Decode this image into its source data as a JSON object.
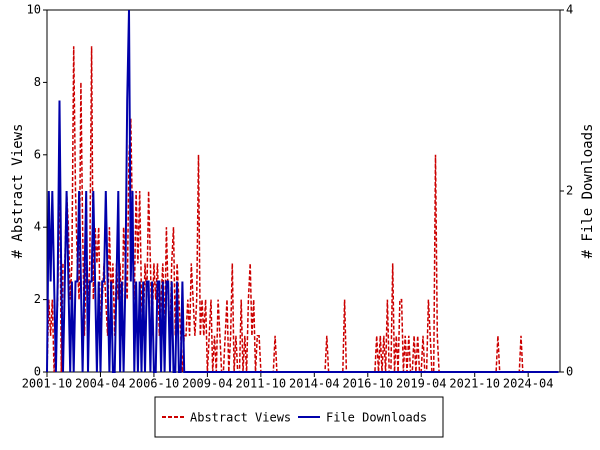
{
  "chart_data": {
    "type": "line",
    "x": [
      "2001-10",
      "2001-11",
      "2001-12",
      "2002-01",
      "2002-02",
      "2002-03",
      "2002-04",
      "2002-05",
      "2002-06",
      "2002-07",
      "2002-08",
      "2002-09",
      "2002-10",
      "2002-11",
      "2002-12",
      "2003-01",
      "2003-02",
      "2003-03",
      "2003-04",
      "2003-05",
      "2003-06",
      "2003-07",
      "2003-08",
      "2003-09",
      "2003-10",
      "2003-11",
      "2003-12",
      "2004-01",
      "2004-02",
      "2004-03",
      "2004-04",
      "2004-05",
      "2004-06",
      "2004-07",
      "2004-08",
      "2004-09",
      "2004-10",
      "2004-11",
      "2004-12",
      "2005-01",
      "2005-02",
      "2005-03",
      "2005-04",
      "2005-05",
      "2005-06",
      "2005-07",
      "2005-08",
      "2005-09",
      "2005-10",
      "2005-11",
      "2005-12",
      "2006-01",
      "2006-02",
      "2006-03",
      "2006-04",
      "2006-05",
      "2006-06",
      "2006-07",
      "2006-08",
      "2006-09",
      "2006-10",
      "2006-11",
      "2006-12",
      "2007-01",
      "2007-02",
      "2007-03",
      "2007-04",
      "2007-05",
      "2007-06",
      "2007-07",
      "2007-08",
      "2007-09",
      "2007-10",
      "2007-11",
      "2007-12",
      "2008-01",
      "2008-02",
      "2008-03",
      "2008-04",
      "2008-05",
      "2008-06",
      "2008-07",
      "2008-08",
      "2008-09",
      "2008-10",
      "2008-11",
      "2008-12",
      "2009-01",
      "2009-02",
      "2009-03",
      "2009-04",
      "2009-05",
      "2009-06",
      "2009-07",
      "2009-08",
      "2009-09",
      "2009-10",
      "2009-11",
      "2009-12",
      "2010-01",
      "2010-02",
      "2010-03",
      "2010-04",
      "2010-05",
      "2010-06",
      "2010-07",
      "2010-08",
      "2010-09",
      "2010-10",
      "2010-11",
      "2010-12",
      "2011-01",
      "2011-02",
      "2011-03",
      "2011-04",
      "2011-05",
      "2011-06",
      "2011-07",
      "2011-08",
      "2011-09",
      "2011-10",
      "2011-11",
      "2011-12",
      "2012-01",
      "2012-02",
      "2012-03",
      "2012-04",
      "2012-05",
      "2012-06",
      "2012-07",
      "2012-08",
      "2012-09",
      "2012-10",
      "2012-11",
      "2012-12",
      "2013-01",
      "2013-02",
      "2013-03",
      "2013-04",
      "2013-05",
      "2013-06",
      "2013-07",
      "2013-08",
      "2013-09",
      "2013-10",
      "2013-11",
      "2013-12",
      "2014-01",
      "2014-02",
      "2014-03",
      "2014-04",
      "2014-05",
      "2014-06",
      "2014-07",
      "2014-08",
      "2014-09",
      "2014-10",
      "2014-11",
      "2014-12",
      "2015-01",
      "2015-02",
      "2015-03",
      "2015-04",
      "2015-05",
      "2015-06",
      "2015-07",
      "2015-08",
      "2015-09",
      "2015-10",
      "2015-11",
      "2015-12",
      "2016-01",
      "2016-02",
      "2016-03",
      "2016-04",
      "2016-05",
      "2016-06",
      "2016-07",
      "2016-08",
      "2016-09",
      "2016-10",
      "2016-11",
      "2016-12",
      "2017-01",
      "2017-02",
      "2017-03",
      "2017-04",
      "2017-05",
      "2017-06",
      "2017-07",
      "2017-08",
      "2017-09",
      "2017-10",
      "2017-11",
      "2017-12",
      "2018-01",
      "2018-02",
      "2018-03",
      "2018-04",
      "2018-05",
      "2018-06",
      "2018-07",
      "2018-08",
      "2018-09",
      "2018-10",
      "2018-11",
      "2018-12",
      "2019-01",
      "2019-02",
      "2019-03",
      "2019-04",
      "2019-05",
      "2019-06",
      "2019-07",
      "2019-08",
      "2019-09",
      "2019-10",
      "2019-11",
      "2019-12",
      "2020-01",
      "2020-02",
      "2020-03",
      "2020-04",
      "2020-05",
      "2020-06",
      "2020-07",
      "2020-08",
      "2020-09",
      "2020-10",
      "2020-11",
      "2020-12",
      "2021-01",
      "2021-02",
      "2021-03",
      "2021-04",
      "2021-05",
      "2021-06",
      "2021-07",
      "2021-08",
      "2021-09",
      "2021-10",
      "2021-11",
      "2021-12",
      "2022-01",
      "2022-02",
      "2022-03",
      "2022-04",
      "2022-05",
      "2022-06",
      "2022-07",
      "2022-08",
      "2022-09",
      "2022-10",
      "2022-11",
      "2022-12",
      "2023-01",
      "2023-02",
      "2023-03",
      "2023-04",
      "2023-05",
      "2023-06",
      "2023-07",
      "2023-08",
      "2023-09",
      "2023-10",
      "2023-11",
      "2023-12",
      "2024-01",
      "2024-02",
      "2024-03",
      "2024-04",
      "2024-05",
      "2024-06",
      "2024-07",
      "2024-08",
      "2024-09",
      "2024-10",
      "2024-11",
      "2024-12",
      "2025-01",
      "2025-02",
      "2025-03",
      "2025-04",
      "2025-05",
      "2025-06",
      "2025-07",
      "2025-08",
      "2025-09"
    ],
    "series": [
      {
        "name": "Abstract Views",
        "color": "#cc0000",
        "axis": "y",
        "values": [
          0,
          2,
          1,
          2,
          0,
          1,
          2,
          6,
          0,
          3,
          3,
          5,
          4,
          2,
          3,
          9,
          5,
          3,
          2,
          8,
          4,
          1,
          3,
          2,
          3,
          9,
          2,
          4,
          3,
          4,
          1,
          2,
          3,
          2,
          1,
          4,
          2,
          3,
          1,
          3,
          2,
          3,
          1,
          4,
          3,
          2,
          6,
          7,
          4,
          2,
          5,
          3,
          5,
          2,
          1,
          3,
          2,
          5,
          3,
          1,
          3,
          2,
          3,
          1,
          2,
          3,
          1,
          4,
          2,
          1,
          3,
          4,
          1,
          3,
          2,
          1,
          0,
          1,
          1,
          2,
          1,
          3,
          2,
          1,
          2,
          6,
          1,
          2,
          1,
          2,
          0,
          1,
          2,
          0,
          1,
          0,
          2,
          1,
          0,
          0,
          1,
          2,
          0,
          1,
          3,
          0,
          1,
          0,
          0,
          2,
          0,
          1,
          0,
          2,
          3,
          1,
          2,
          0,
          1,
          1,
          0,
          0,
          0,
          0,
          0,
          0,
          0,
          0,
          1,
          0,
          0,
          0,
          0,
          0,
          0,
          0,
          0,
          0,
          0,
          0,
          0,
          0,
          0,
          0,
          0,
          0,
          0,
          0,
          0,
          0,
          0,
          0,
          0,
          0,
          0,
          0,
          0,
          1,
          0,
          0,
          0,
          0,
          0,
          0,
          0,
          0,
          0,
          2,
          0,
          0,
          0,
          0,
          0,
          0,
          0,
          0,
          0,
          0,
          0,
          0,
          0,
          0,
          0,
          0,
          0,
          1,
          0,
          1,
          0,
          1,
          0,
          2,
          0,
          0,
          3,
          0,
          1,
          0,
          2,
          2,
          0,
          1,
          0,
          1,
          0,
          0,
          1,
          0,
          1,
          0,
          0,
          1,
          0,
          0,
          2,
          1,
          0,
          0,
          6,
          1,
          0,
          0,
          0,
          0,
          0,
          0,
          0,
          0,
          0,
          0,
          0,
          0,
          0,
          0,
          0,
          0,
          0,
          0,
          0,
          0,
          0,
          0,
          0,
          0,
          0,
          0,
          0,
          0,
          0,
          0,
          0,
          0,
          0,
          1,
          0,
          0,
          0,
          0,
          0,
          0,
          0,
          0,
          0,
          0,
          0,
          0,
          1,
          0,
          0,
          0,
          0,
          0,
          0,
          0,
          0,
          0,
          0,
          0,
          0,
          0,
          0,
          0,
          0,
          0,
          0,
          0,
          0,
          0
        ]
      },
      {
        "name": "File Downloads",
        "color": "#0000aa",
        "axis": "y2",
        "values": [
          0,
          2,
          1,
          2,
          1,
          0,
          1,
          3,
          1,
          0,
          1,
          2,
          1,
          0,
          1,
          0,
          1,
          1,
          2,
          1,
          0,
          1,
          2,
          0,
          1,
          1,
          2,
          1,
          0,
          1,
          0,
          1,
          1,
          2,
          1,
          0,
          1,
          0,
          0,
          1,
          2,
          0,
          1,
          0,
          1,
          3,
          4,
          1,
          2,
          0,
          1,
          0,
          1,
          0,
          1,
          0,
          1,
          1,
          0,
          1,
          0,
          0,
          1,
          1,
          0,
          1,
          0,
          1,
          1,
          0,
          1,
          0,
          0,
          1,
          0,
          0,
          1,
          0,
          0,
          0,
          0,
          0,
          0,
          0,
          0,
          0,
          0,
          0,
          0,
          0,
          0,
          0,
          0,
          0,
          0,
          0,
          0,
          0,
          0,
          0,
          0,
          0,
          0,
          0,
          0,
          0,
          0,
          0,
          0,
          0,
          0,
          0,
          0,
          0,
          0,
          0,
          0,
          0,
          0,
          0,
          0,
          0,
          0,
          0,
          0,
          0,
          0,
          0,
          0,
          0,
          0,
          0,
          0,
          0,
          0,
          0,
          0,
          0,
          0,
          0,
          0,
          0,
          0,
          0,
          0,
          0,
          0,
          0,
          0,
          0,
          0,
          0,
          0,
          0,
          0,
          0,
          0,
          0,
          0,
          0,
          0,
          0,
          0,
          0,
          0,
          0,
          0,
          0,
          0,
          0,
          0,
          0,
          0,
          0,
          0,
          0,
          0,
          0,
          0,
          0,
          0,
          0,
          0,
          0,
          0,
          0,
          0,
          0,
          0,
          0,
          0,
          0,
          0,
          0,
          0,
          0,
          0,
          0,
          0,
          0,
          0,
          0,
          0,
          0,
          0,
          0,
          0,
          0,
          0,
          0,
          0,
          0,
          0,
          0,
          0,
          0,
          0,
          0,
          0,
          0,
          0,
          0,
          0,
          0,
          0,
          0,
          0,
          0,
          0,
          0,
          0,
          0,
          0,
          0,
          0,
          0,
          0,
          0,
          0,
          0,
          0,
          0,
          0,
          0,
          0,
          0,
          0,
          0,
          0,
          0,
          0,
          0,
          0,
          0,
          0,
          0,
          0,
          0,
          0,
          0,
          0,
          0,
          0,
          0,
          0,
          0,
          0,
          0,
          0,
          0,
          0,
          0,
          0,
          0,
          0,
          0,
          0,
          0,
          0,
          0,
          0,
          0,
          0,
          0,
          0,
          0,
          0,
          0
        ]
      }
    ],
    "xticks": [
      "2001-10",
      "2004-04",
      "2006-10",
      "2009-04",
      "2011-10",
      "2014-04",
      "2016-10",
      "2019-04",
      "2021-10",
      "2024-04"
    ],
    "ylabel": "# Abstract Views",
    "ylim": [
      0,
      10
    ],
    "yticks": [
      0,
      2,
      4,
      6,
      8,
      10
    ],
    "y2label": "# File Downloads",
    "y2lim": [
      0,
      4
    ],
    "y2ticks": [
      0,
      2,
      4
    ]
  }
}
